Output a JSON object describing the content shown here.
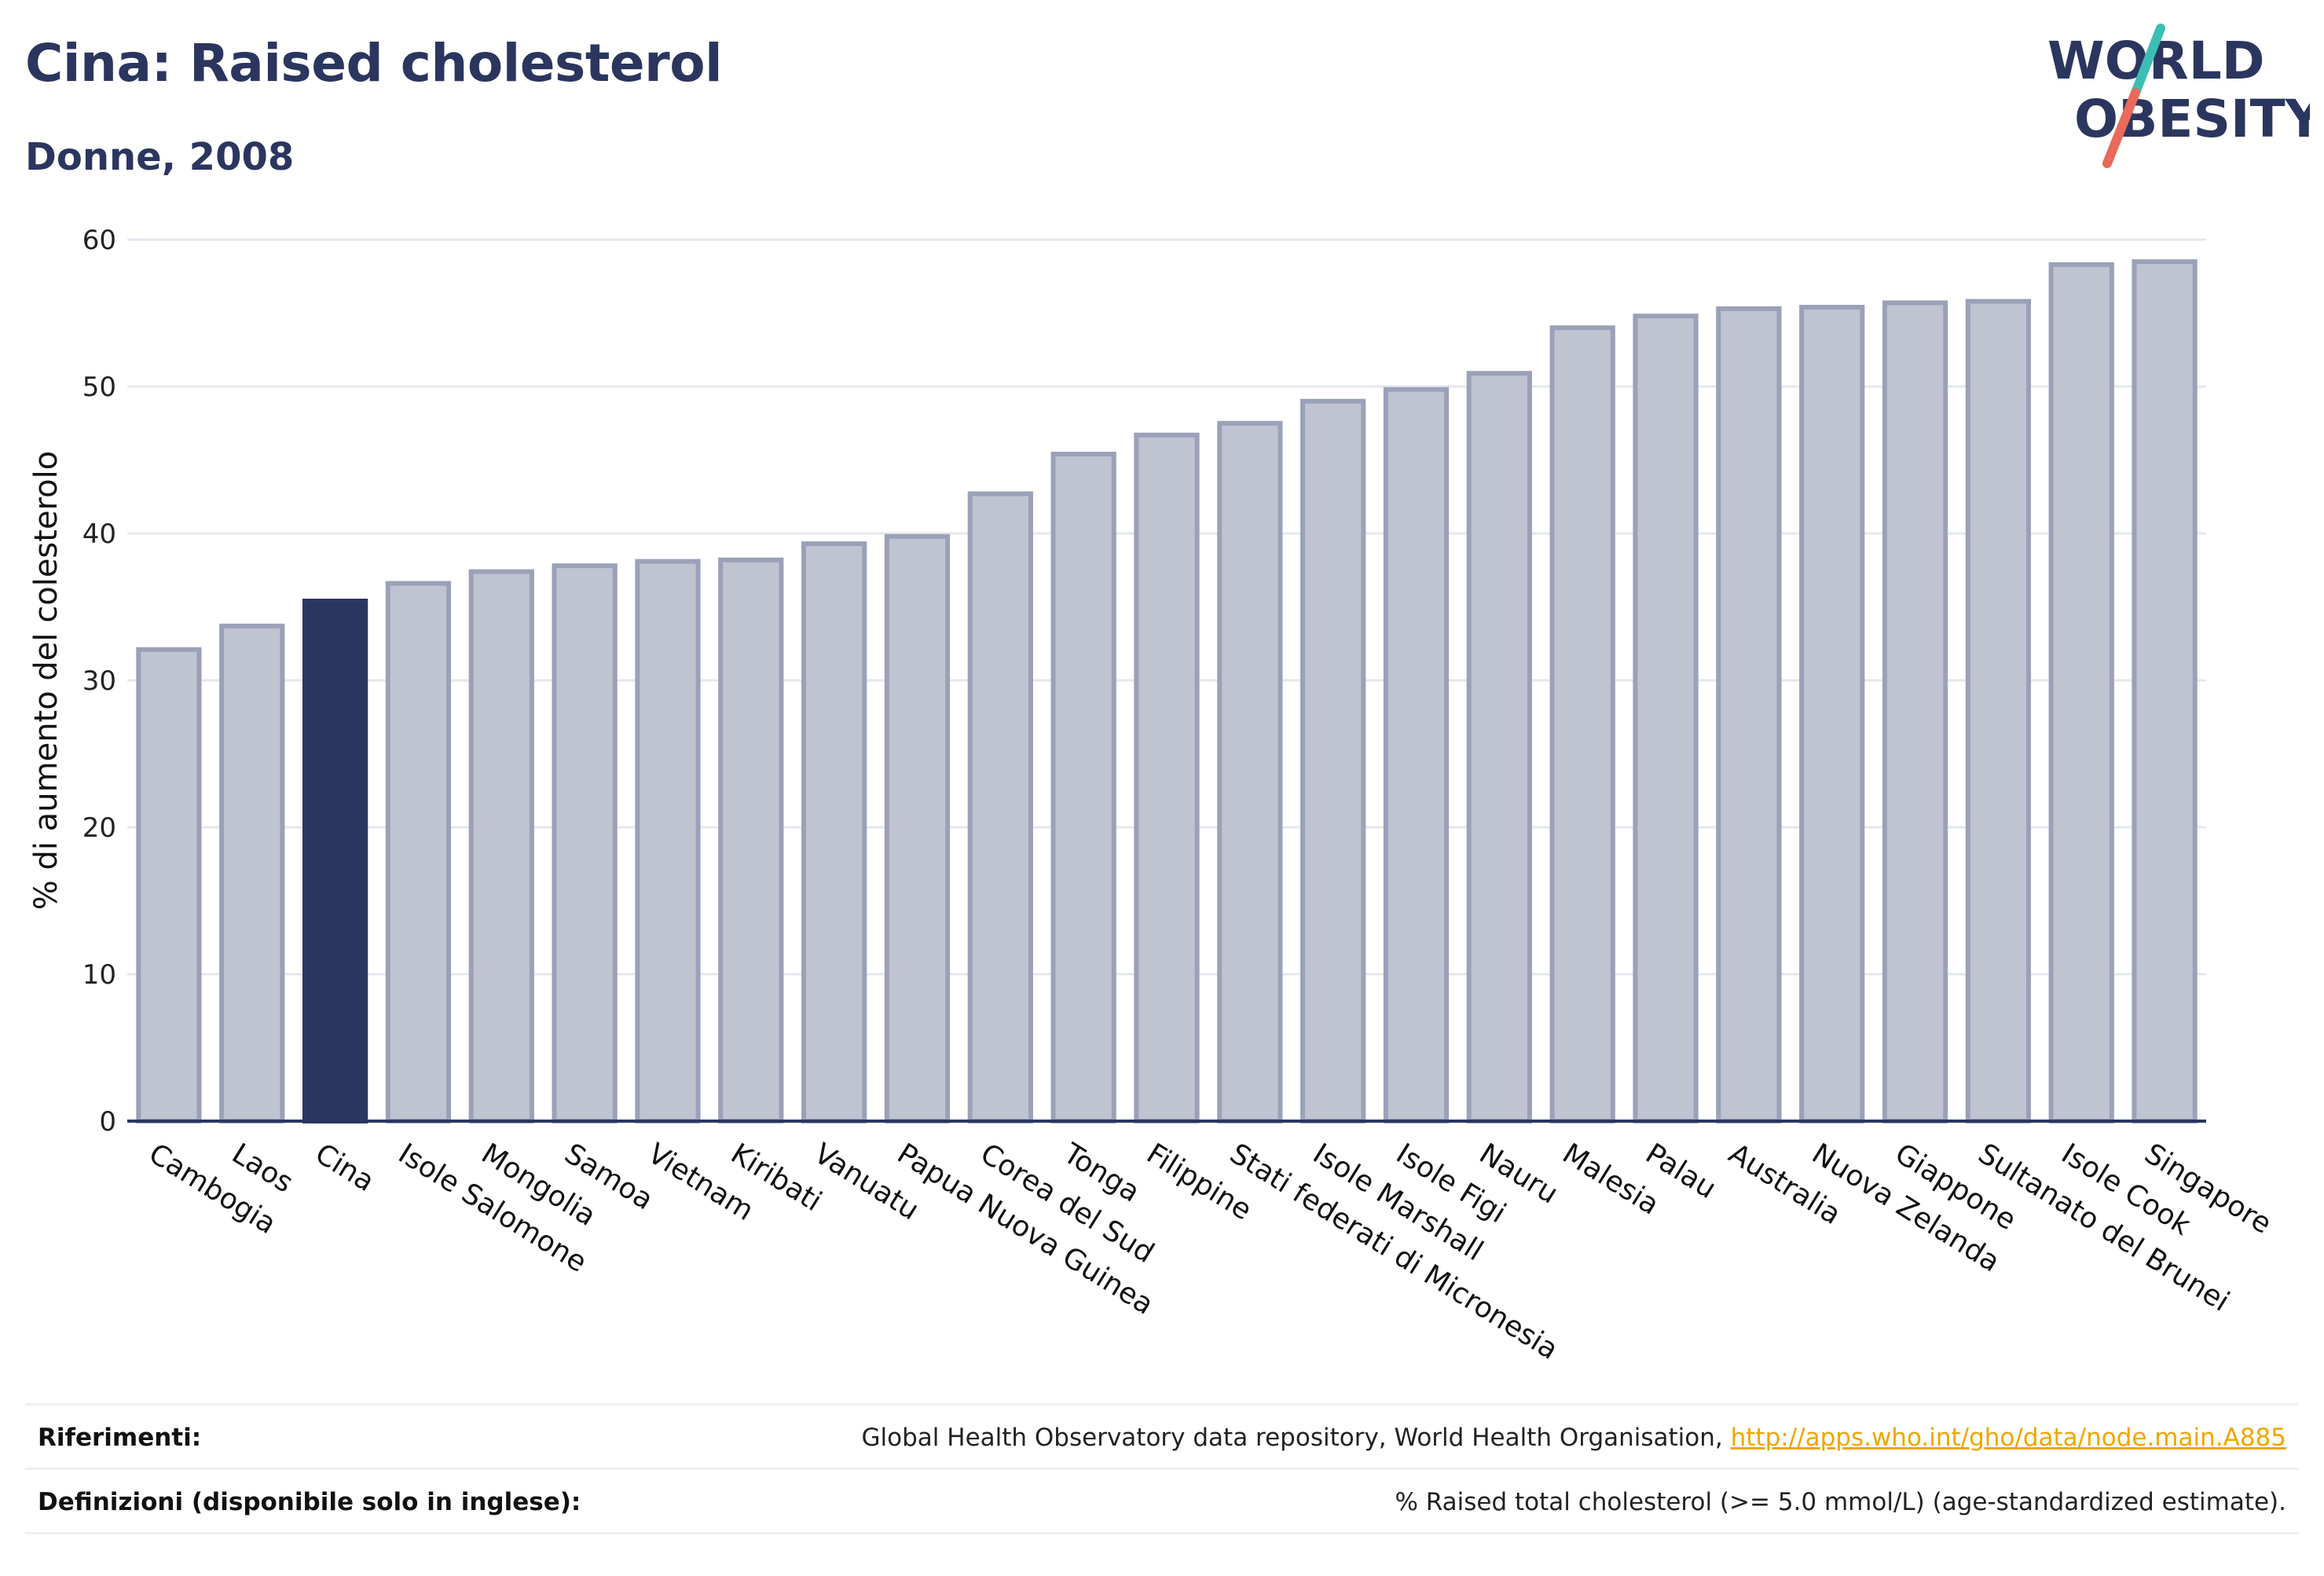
{
  "header": {
    "title": "Cina: Raised cholesterol",
    "subtitle": "Donne, 2008"
  },
  "logo": {
    "line1": "WORLD",
    "line2": "OBESITY",
    "colors": {
      "text": "#2b365f",
      "slash_top": "#3bbfb5",
      "slash_bottom": "#e86a5a"
    }
  },
  "chart_data": {
    "type": "bar",
    "ylabel": "% di aumento del colesterolo",
    "ylim": [
      0,
      60
    ],
    "yticks": [
      0,
      10,
      20,
      30,
      40,
      50,
      60
    ],
    "grid": true,
    "highlight": "Cina",
    "colors": {
      "bar": "#c0c4d1",
      "bar_edge": "#9aa1b8",
      "highlight": "#2b365f",
      "grid": "#e6e7ee",
      "axis": "#2b365f"
    },
    "categories": [
      "Cambogia",
      "Laos",
      "Cina",
      "Isole Salomone",
      "Mongolia",
      "Samoa",
      "Vietnam",
      "Kiribati",
      "Vanuatu",
      "Papua Nuova Guinea",
      "Corea del Sud",
      "Tonga",
      "Filippine",
      "Stati federati di Micronesia",
      "Isole Marshall",
      "Isole Figi",
      "Nauru",
      "Malesia",
      "Palau",
      "Australia",
      "Nuova Zelanda",
      "Giappone",
      "Sultanato del Brunei",
      "Isole Cook",
      "Singapore"
    ],
    "values": [
      32.1,
      33.7,
      35.4,
      36.6,
      37.4,
      37.8,
      38.1,
      38.2,
      39.3,
      39.8,
      42.7,
      45.4,
      46.7,
      47.5,
      49.0,
      49.8,
      50.9,
      54.0,
      54.8,
      55.3,
      55.4,
      55.7,
      55.8,
      58.3,
      58.5
    ]
  },
  "footer": {
    "references_label": "Riferimenti:",
    "references_text": "Global Health Observatory data repository, World Health Organisation, ",
    "references_link": "http://apps.who.int/gho/data/node.main.A885",
    "definitions_label": "Definizioni (disponibile solo in inglese):",
    "definitions_text": "% Raised total cholesterol (>= 5.0 mmol/L) (age-standardized estimate)."
  }
}
